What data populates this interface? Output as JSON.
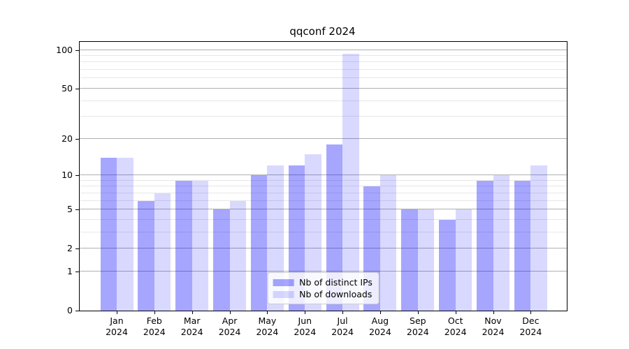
{
  "figure": {
    "background": "#ffffff",
    "frame_color": "#000000",
    "text_color": "#000000"
  },
  "chart_data": {
    "type": "bar",
    "title": "qqconf 2024",
    "categories": [
      "Jan 2024",
      "Feb 2024",
      "Mar 2024",
      "Apr 2024",
      "May 2024",
      "Jun 2024",
      "Jul 2024",
      "Aug 2024",
      "Sep 2024",
      "Oct 2024",
      "Nov 2024",
      "Dec 2024"
    ],
    "series": [
      {
        "name": "Nb of distinct IPs",
        "color": "#0000ff",
        "opacity": 0.35,
        "values": [
          14,
          6,
          9,
          5,
          10,
          12,
          18,
          8,
          5,
          4,
          9,
          9
        ]
      },
      {
        "name": "Nb of downloads",
        "color": "#0000ff",
        "opacity": 0.15,
        "values": [
          14,
          7,
          9,
          6,
          12,
          15,
          93,
          10,
          5,
          5,
          10,
          12
        ]
      }
    ],
    "xlabel": "",
    "ylabel": "",
    "yscale": "log1p",
    "ylim": [
      0,
      115.5
    ],
    "yticks_major": [
      0,
      1,
      2,
      5,
      10,
      20,
      50,
      100
    ],
    "yticks_minor": [
      3,
      4,
      6,
      7,
      8,
      9,
      30,
      40,
      60,
      70,
      80,
      90
    ],
    "grid": {
      "on": true,
      "major_color": "#b0b0b0",
      "minor_color": "#e7e7e7"
    },
    "legend": {
      "position": "lower center"
    }
  }
}
